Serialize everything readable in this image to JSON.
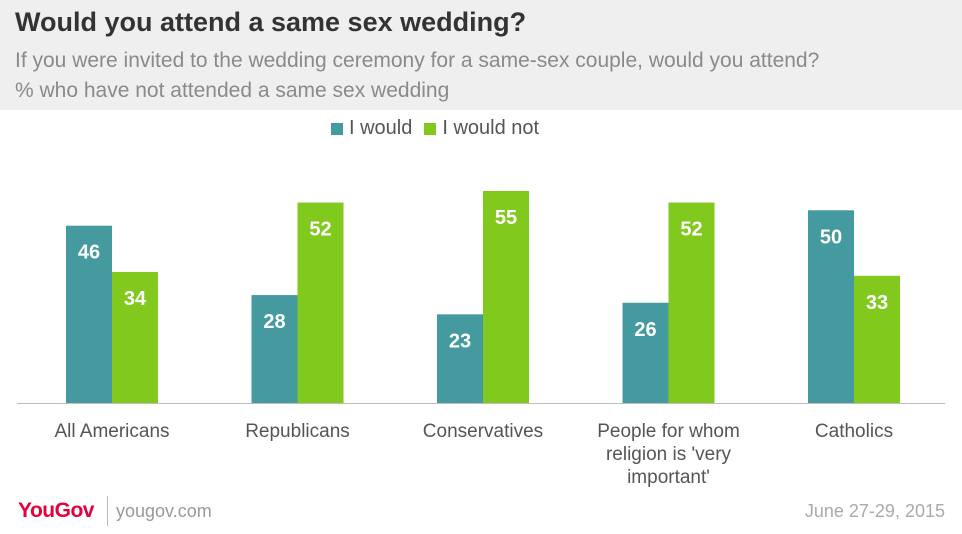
{
  "header": {
    "title": "Would you attend a same sex wedding?",
    "subtitle_line1": "If you were invited to the wedding ceremony for a same-sex couple, would you attend?",
    "subtitle_line2": "% who have not attended a same sex wedding"
  },
  "legend": {
    "items": [
      {
        "label": "I would",
        "color": "#449a9e"
      },
      {
        "label": "I would not",
        "color": "#82c91e"
      }
    ]
  },
  "chart_data": {
    "type": "bar",
    "title": "Would you attend a same sex wedding?",
    "categories": [
      [
        "All Americans"
      ],
      [
        "Republicans"
      ],
      [
        "Conservatives"
      ],
      [
        "People for whom",
        "religion is 'very",
        "important'"
      ],
      [
        "Catholics"
      ]
    ],
    "series": [
      {
        "name": "I would",
        "color": "#449a9e",
        "values": [
          46,
          28,
          23,
          26,
          50
        ]
      },
      {
        "name": "I would not",
        "color": "#82c91e",
        "values": [
          34,
          52,
          55,
          52,
          33
        ]
      }
    ],
    "ylim": [
      0,
      55
    ],
    "grid": false,
    "legend_position": "top-center",
    "data_labels": true
  },
  "footer": {
    "logo": "YouGov",
    "site": "yougov.com",
    "date": "June 27-29, 2015"
  }
}
